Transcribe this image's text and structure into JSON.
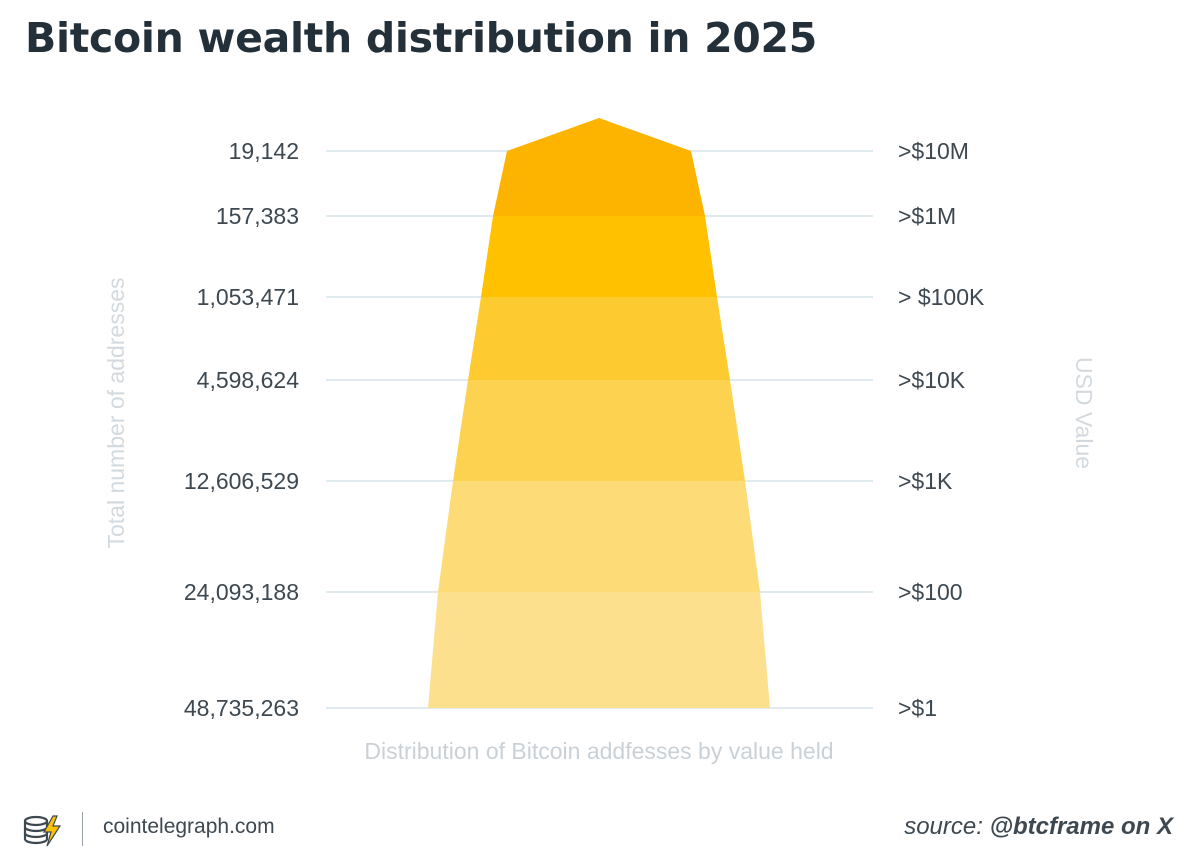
{
  "title": "Bitcoin wealth distribution in 2025",
  "chart_data": {
    "type": "funnel",
    "title": "Bitcoin wealth distribution in 2025",
    "ylabel": "Total number of addresses",
    "y2label": "USD Value",
    "xlabel": "Distribution of Bitcoin addfesses by value held",
    "tiers": [
      {
        "addresses": "19,142",
        "usd": ">$10M",
        "color": "#FDB400"
      },
      {
        "addresses": "157,383",
        "usd": ">$1M",
        "color": "#FFC100"
      },
      {
        "addresses": "1,053,471",
        "usd": "> $100K",
        "color": "#FDCA2F"
      },
      {
        "addresses": "4,598,624",
        "usd": ">$10K",
        "color": "#FDD251"
      },
      {
        "addresses": "12,606,529",
        "usd": ">$1K",
        "color": "#FDDB77"
      },
      {
        "addresses": "24,093,188",
        "usd": ">$100",
        "color": "#FDE08E"
      },
      {
        "addresses": "48,735,263",
        "usd": ">$1",
        "color": "#FDE08E"
      }
    ],
    "grid": true
  },
  "footer": {
    "site": "cointelegraph.com",
    "source_prefix": "source: ",
    "source_handle": "@btcframe on X"
  }
}
